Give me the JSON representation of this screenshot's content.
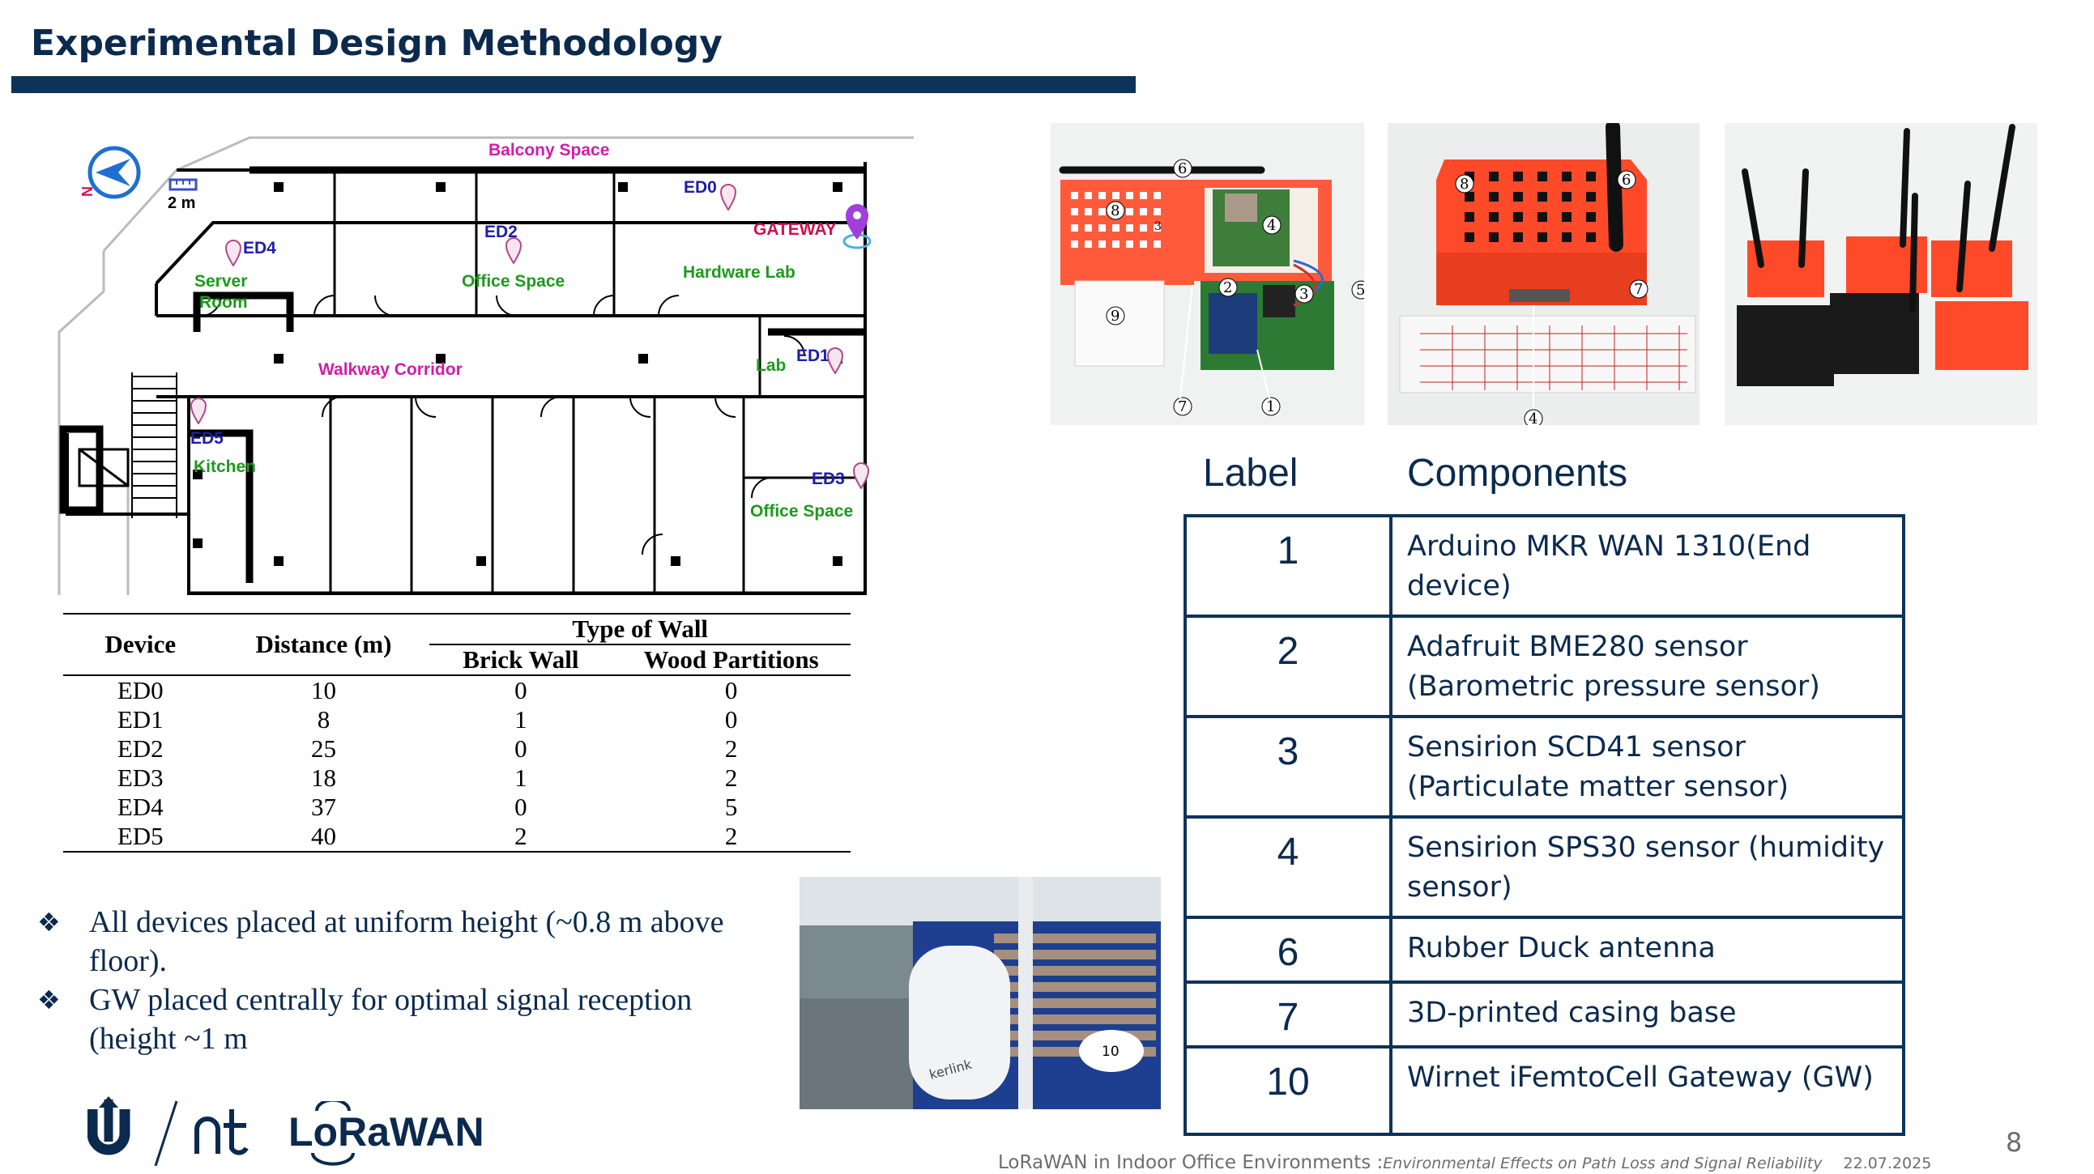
{
  "slide": {
    "title": "Experimental Design Methodology",
    "page_number": "8",
    "footer_main": "LoRaWAN in Indoor Office Environments :",
    "footer_sub": "Environmental Effects on Path Loss and Signal Reliability",
    "footer_date": "22.07.2025"
  },
  "floorplan": {
    "north": "N",
    "scale": "2 m",
    "balcony": "Balcony Space",
    "gateway": "GATEWAY",
    "corridor": "Walkway Corridor",
    "hardware_lab": "Hardware Lab",
    "lab": "Lab",
    "server_room_1": "Server",
    "server_room_2": "Room",
    "office_space_top": "Office Space",
    "office_space_bottom": "Office Space",
    "kitchen": "Kitchen",
    "devices": [
      "ED0",
      "ED1",
      "ED2",
      "ED3",
      "ED4",
      "ED5"
    ]
  },
  "device_table": {
    "headers": {
      "device": "Device",
      "distance": "Distance (m)",
      "wall_group": "Type of Wall",
      "brick": "Brick Wall",
      "wood": "Wood Partitions"
    },
    "rows": [
      {
        "device": "ED0",
        "distance": "10",
        "brick": "0",
        "wood": "0"
      },
      {
        "device": "ED1",
        "distance": "8",
        "brick": "1",
        "wood": "0"
      },
      {
        "device": "ED2",
        "distance": "25",
        "brick": "0",
        "wood": "2"
      },
      {
        "device": "ED3",
        "distance": "18",
        "brick": "1",
        "wood": "2"
      },
      {
        "device": "ED4",
        "distance": "37",
        "brick": "0",
        "wood": "5"
      },
      {
        "device": "ED5",
        "distance": "40",
        "brick": "2",
        "wood": "2"
      }
    ]
  },
  "photos": {
    "photo1_markers": [
      "6",
      "8",
      "3",
      "4",
      "2",
      "3",
      "5",
      "9",
      "7",
      "1"
    ],
    "photo2_markers": [
      "8",
      "6",
      "7",
      "4"
    ],
    "gateway_badge": "10",
    "gateway_brand": "kerlink"
  },
  "components_table": {
    "col_label": "Label",
    "col_components": "Components",
    "rows": [
      {
        "label": "1",
        "component": "Arduino MKR WAN 1310(End device)"
      },
      {
        "label": "2",
        "component": "Adafruit BME280 sensor (Barometric pressure sensor)"
      },
      {
        "label": "3",
        "component": "Sensirion SCD41 sensor (Particulate matter sensor)"
      },
      {
        "label": "4",
        "component": "Sensirion SPS30 sensor (humidity sensor)"
      },
      {
        "label": "6",
        "component": "Rubber Duck antenna"
      },
      {
        "label": "7",
        "component": "3D-printed casing base"
      },
      {
        "label": "10",
        "component": "Wirnet iFemtoCell Gateway (GW)"
      }
    ]
  },
  "bullets": [
    "All devices placed at uniform height (~0.8 m above floor).",
    "GW placed centrally for optimal signal reception (height ~1 m"
  ],
  "logos": {
    "lorawan": "LoRaWAN"
  },
  "colors": {
    "title": "#0b2a4d",
    "bar": "#0d3358",
    "label_magenta": "#d21ca8",
    "label_green": "#1d9a1d",
    "label_blue": "#1e1ea8",
    "gateway_red": "#d0104e",
    "casing_orange": "#ff5a3c"
  }
}
